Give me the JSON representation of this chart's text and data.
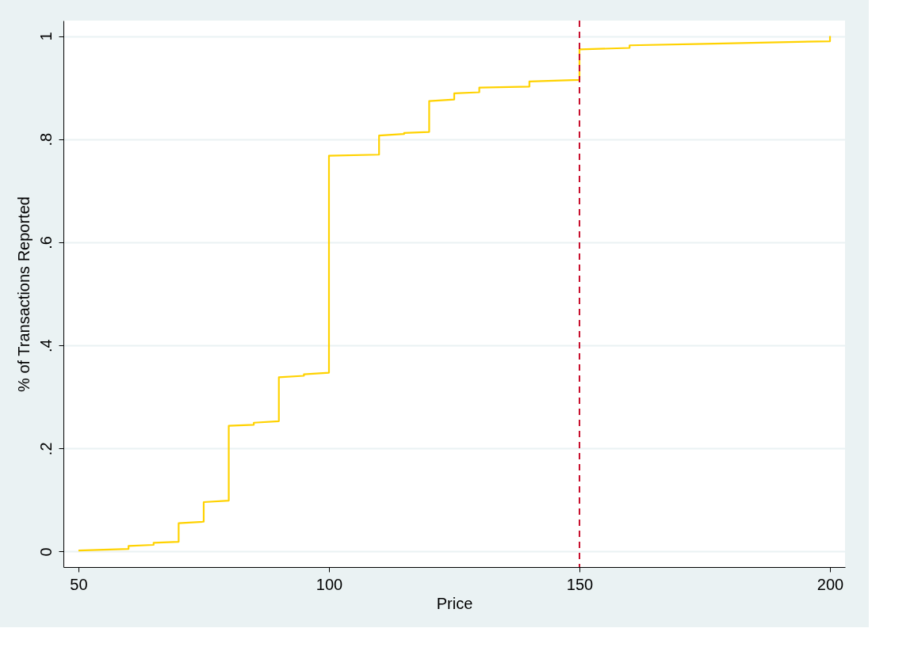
{
  "chart_data": {
    "type": "line",
    "xlabel": "Price",
    "ylabel": "% of Transactions Reported",
    "series": [
      {
        "color": "#ffd200",
        "x": [
          50,
          60,
          60,
          65,
          65,
          70,
          70,
          75,
          75,
          80,
          80,
          85,
          85,
          90,
          90,
          95,
          95,
          100,
          100,
          110,
          110,
          115,
          115,
          120,
          120,
          125,
          125,
          130,
          130,
          140,
          140,
          150,
          150,
          160,
          160,
          175,
          200,
          200
        ],
        "values": [
          0.002,
          0.005,
          0.011,
          0.013,
          0.017,
          0.019,
          0.055,
          0.058,
          0.096,
          0.099,
          0.244,
          0.246,
          0.25,
          0.253,
          0.338,
          0.341,
          0.344,
          0.347,
          0.768,
          0.77,
          0.807,
          0.81,
          0.812,
          0.814,
          0.874,
          0.877,
          0.889,
          0.891,
          0.9,
          0.902,
          0.912,
          0.915,
          0.974,
          0.977,
          0.982,
          0.985,
          0.99,
          1.0
        ]
      }
    ],
    "xlim": [
      47,
      203
    ],
    "xticks": [
      50,
      100,
      150,
      200
    ],
    "ylim": [
      -0.03,
      1.03
    ],
    "yticks": [
      {
        "value": 0,
        "label": "0"
      },
      {
        "value": 0.2,
        "label": ".2"
      },
      {
        "value": 0.4,
        "label": ".4"
      },
      {
        "value": 0.6,
        "label": ".6"
      },
      {
        "value": 0.8,
        "label": ".8"
      },
      {
        "value": 1,
        "label": "1"
      }
    ],
    "grid": "y",
    "line_style": "solid",
    "marker": "none",
    "ref_lines": [
      {
        "axis": "x",
        "value": 150,
        "color": "#c8102e",
        "line_style": "dashed"
      }
    ]
  }
}
